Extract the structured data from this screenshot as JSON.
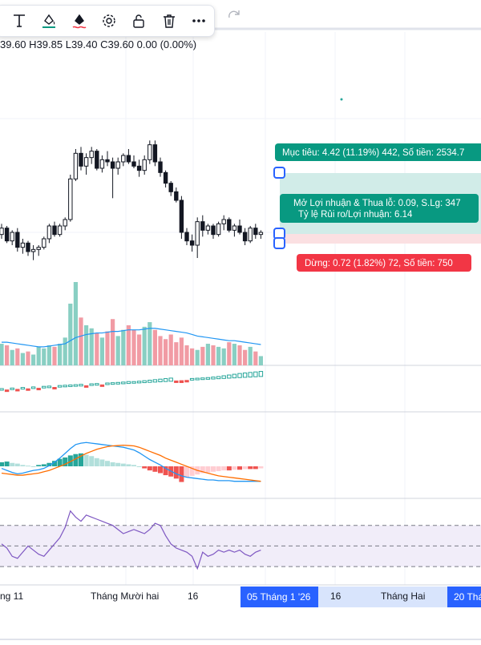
{
  "toolbar": {
    "icons": [
      "text-tool-icon",
      "fill-color-icon",
      "line-color-icon",
      "settings-gear-icon",
      "unlock-icon",
      "trash-icon",
      "more-dots-icon"
    ],
    "redo_icon": "redo-arrow-icon"
  },
  "ohlc": {
    "high": "H39.85",
    "low": "L39.40",
    "close": "C39.60",
    "change": "0.00 (0.00%)",
    "open_tail": "39.60"
  },
  "position_tool": {
    "target_label": "Mục tiêu: 4.42 (11.19%) 442, Số tiền: 2534.7",
    "center_line1": "Mở Lợi nhuận & Thua lỗ: 0.09, S.Lg: 347",
    "center_line2": "Tỷ lệ Rủi ro/Lợi nhuận: 6.14",
    "stop_label": "Dừng: 0.72 (1.82%) 72, Số tiền: 750",
    "colors": {
      "target_fill": "#d1ece8",
      "stop_fill": "#fbe0e2",
      "target_badge": "#089981",
      "stop_badge": "#f23645",
      "handle": "#2962ff"
    }
  },
  "x_axis": {
    "labels": [
      "ng 11",
      "Tháng Mười hai",
      "16",
      "16",
      "Tháng Hai"
    ],
    "highlight_labels": [
      "05 Tháng 1 '26",
      "20 Tháng"
    ],
    "highlight_color": "#2962ff"
  },
  "chart_data": [
    {
      "type": "candlestick",
      "up_color": "#131722",
      "down_color": "#131722",
      "candles": [
        [
          12.4,
          12.9,
          12.2,
          12.7
        ],
        [
          12.7,
          12.8,
          12.0,
          12.1
        ],
        [
          12.1,
          12.6,
          11.9,
          12.5
        ],
        [
          12.5,
          12.7,
          11.6,
          11.8
        ],
        [
          11.8,
          12.2,
          11.5,
          12.0
        ],
        [
          12.0,
          12.1,
          11.4,
          11.6
        ],
        [
          11.6,
          11.9,
          11.2,
          11.7
        ],
        [
          11.7,
          11.9,
          11.4,
          11.8
        ],
        [
          11.8,
          12.3,
          11.7,
          12.2
        ],
        [
          12.2,
          12.9,
          12.0,
          12.8
        ],
        [
          12.8,
          13.0,
          12.3,
          12.4
        ],
        [
          12.4,
          12.9,
          12.3,
          12.8
        ],
        [
          12.8,
          13.2,
          12.6,
          13.1
        ],
        [
          13.1,
          15.2,
          13.0,
          15.0
        ],
        [
          15.0,
          16.4,
          14.9,
          16.2
        ],
        [
          16.2,
          16.5,
          15.4,
          15.6
        ],
        [
          15.6,
          16.2,
          15.2,
          16.0
        ],
        [
          16.0,
          16.5,
          15.7,
          16.3
        ],
        [
          16.3,
          16.4,
          15.4,
          15.5
        ],
        [
          15.5,
          16.1,
          15.3,
          15.9
        ],
        [
          15.9,
          16.3,
          15.6,
          15.8
        ],
        [
          15.8,
          16.0,
          14.1,
          15.5
        ],
        [
          15.5,
          16.0,
          15.2,
          15.8
        ],
        [
          15.8,
          16.2,
          15.6,
          16.1
        ],
        [
          16.1,
          16.4,
          15.7,
          15.8
        ],
        [
          15.8,
          16.1,
          15.5,
          15.6
        ],
        [
          15.6,
          15.9,
          15.1,
          15.4
        ],
        [
          15.4,
          16.1,
          15.2,
          15.9
        ],
        [
          15.9,
          16.8,
          15.7,
          16.6
        ],
        [
          16.6,
          16.8,
          15.6,
          15.8
        ],
        [
          15.8,
          16.0,
          15.1,
          15.3
        ],
        [
          15.3,
          15.4,
          14.6,
          14.8
        ],
        [
          14.8,
          14.9,
          14.2,
          14.4
        ],
        [
          14.4,
          14.6,
          13.9,
          14.0
        ],
        [
          14.0,
          14.2,
          12.2,
          12.5
        ],
        [
          12.5,
          12.7,
          11.9,
          12.1
        ],
        [
          12.1,
          12.4,
          11.6,
          11.9
        ],
        [
          11.9,
          13.2,
          11.3,
          13.0
        ],
        [
          13.0,
          13.3,
          12.3,
          12.6
        ],
        [
          12.6,
          12.9,
          12.4,
          12.8
        ],
        [
          12.8,
          12.9,
          12.2,
          12.4
        ],
        [
          12.4,
          13.0,
          12.3,
          12.9
        ],
        [
          12.9,
          13.3,
          12.6,
          13.1
        ],
        [
          13.1,
          13.2,
          12.5,
          12.6
        ],
        [
          12.6,
          12.9,
          12.3,
          12.8
        ],
        [
          12.8,
          13.1,
          12.4,
          12.5
        ],
        [
          12.5,
          12.7,
          11.9,
          12.1
        ],
        [
          12.1,
          12.8,
          12.0,
          12.7
        ],
        [
          12.7,
          12.9,
          12.2,
          12.4
        ],
        [
          12.4,
          12.6,
          12.2,
          12.5
        ]
      ]
    },
    {
      "type": "bar",
      "name": "volume",
      "up_color": "#89cfc3",
      "down_color": "#f19ba4",
      "values": [
        28,
        26,
        20,
        22,
        16,
        18,
        14,
        24,
        22,
        26,
        24,
        28,
        36,
        80,
        108,
        62,
        52,
        48,
        42,
        36,
        44,
        60,
        38,
        46,
        52,
        46,
        40,
        50,
        56,
        46,
        38,
        34,
        40,
        30,
        36,
        26,
        22,
        20,
        24,
        28,
        26,
        24,
        22,
        30,
        28,
        26,
        20,
        24,
        18,
        12
      ],
      "up": [
        1,
        0,
        1,
        0,
        1,
        0,
        1,
        1,
        1,
        1,
        0,
        1,
        1,
        1,
        1,
        0,
        1,
        1,
        0,
        1,
        0,
        0,
        1,
        1,
        0,
        0,
        0,
        1,
        1,
        0,
        0,
        0,
        0,
        0,
        0,
        0,
        0,
        1,
        0,
        1,
        0,
        1,
        1,
        0,
        1,
        0,
        0,
        1,
        0,
        1
      ],
      "ma_series": [
        30,
        30,
        29,
        28,
        27,
        26,
        25,
        24,
        24,
        25,
        26,
        27,
        28,
        32,
        36,
        38,
        40,
        41,
        42,
        42,
        43,
        44,
        44,
        45,
        46,
        46,
        46,
        47,
        48,
        48,
        47,
        46,
        45,
        44,
        43,
        42,
        40,
        38,
        37,
        36,
        35,
        34,
        33,
        32,
        32,
        31,
        30,
        29,
        28,
        27
      ]
    },
    {
      "type": "bar",
      "name": "oscillator-mini",
      "values": [
        0.4,
        -0.3,
        0.3,
        -0.4,
        0.3,
        -0.5,
        0.2,
        -0.3,
        0.3,
        0.4,
        -0.2,
        0.3,
        0.4,
        0.5,
        0.6,
        0.7,
        -0.3,
        0.5,
        0.6,
        -0.2,
        0.4,
        0.5,
        0.6,
        0.7,
        0.8,
        0.6,
        0.7,
        0.8,
        0.9,
        1.0,
        1.1,
        1.2,
        1.3,
        -0.6,
        -0.8,
        -0.5,
        0.5,
        0.6,
        0.4,
        0.7,
        0.8,
        0.9,
        1.1,
        1.3,
        1.5,
        1.7,
        1.8,
        1.9,
        2.0,
        2.1
      ]
    },
    {
      "type": "macd",
      "histogram": [
        0.6,
        0.7,
        0.5,
        0.4,
        0.2,
        0.1,
        0.0,
        0.2,
        0.3,
        0.5,
        0.8,
        1.1,
        1.3,
        1.6,
        1.8,
        1.9,
        1.7,
        1.5,
        1.2,
        1.0,
        0.8,
        0.6,
        0.5,
        0.4,
        0.3,
        0.2,
        0.0,
        -0.3,
        -0.6,
        -0.8,
        -1.0,
        -1.3,
        -1.5,
        -1.8,
        -2.3,
        -1.6,
        -1.4,
        -1.2,
        -1.0,
        -0.9,
        -0.8,
        -0.7,
        -0.6,
        -0.6,
        -0.5,
        -0.5,
        -0.4,
        -0.4,
        -0.4,
        -0.3
      ],
      "macd_line": [
        -0.3,
        -0.6,
        -0.9,
        -1.1,
        -1.0,
        -0.8,
        -0.6,
        -0.5,
        -0.3,
        0.1,
        0.6,
        1.2,
        1.9,
        2.6,
        3.2,
        3.4,
        3.5,
        3.4,
        3.3,
        3.2,
        3.1,
        3.0,
        2.9,
        2.8,
        2.6,
        2.4,
        2.0,
        1.5,
        1.0,
        0.6,
        0.2,
        -0.3,
        -0.7,
        -1.1,
        -1.4,
        -1.6,
        -1.7,
        -1.8,
        -1.9,
        -2.0,
        -2.0,
        -2.1,
        -2.1,
        -2.1,
        -2.2,
        -2.2,
        -2.2,
        -2.2,
        -2.2,
        -2.2
      ],
      "signal_line": [
        -1.0,
        -1.1,
        -1.2,
        -1.3,
        -1.3,
        -1.2,
        -1.1,
        -1.0,
        -0.8,
        -0.6,
        -0.3,
        0.0,
        0.3,
        0.7,
        1.1,
        1.5,
        1.9,
        2.2,
        2.5,
        2.7,
        2.9,
        3.0,
        3.05,
        3.1,
        3.05,
        3.0,
        2.8,
        2.5,
        2.2,
        1.9,
        1.6,
        1.2,
        0.9,
        0.6,
        0.3,
        0.0,
        -0.3,
        -0.6,
        -0.8,
        -1.0,
        -1.2,
        -1.4,
        -1.5,
        -1.6,
        -1.7,
        -1.8,
        -1.9,
        -2.0,
        -2.1,
        -2.2
      ],
      "colors": {
        "macd": "#2196f3",
        "signal": "#ff6d00",
        "hist_up": "#26a69a",
        "hist_up_light": "#b2dfdb",
        "hist_down": "#ef5350",
        "hist_down_light": "#ffcdd2"
      }
    },
    {
      "type": "line",
      "name": "rsi",
      "color": "#7e57c2",
      "band_fill": "#f1edf9",
      "levels": [
        70,
        50,
        30
      ],
      "values": [
        52,
        48,
        40,
        38,
        44,
        50,
        46,
        42,
        40,
        46,
        52,
        58,
        68,
        84,
        78,
        74,
        80,
        78,
        76,
        74,
        72,
        70,
        66,
        62,
        64,
        66,
        64,
        62,
        66,
        72,
        70,
        60,
        52,
        48,
        46,
        44,
        40,
        28,
        44,
        40,
        42,
        46,
        44,
        46,
        44,
        46,
        42,
        40,
        44,
        46
      ]
    }
  ]
}
